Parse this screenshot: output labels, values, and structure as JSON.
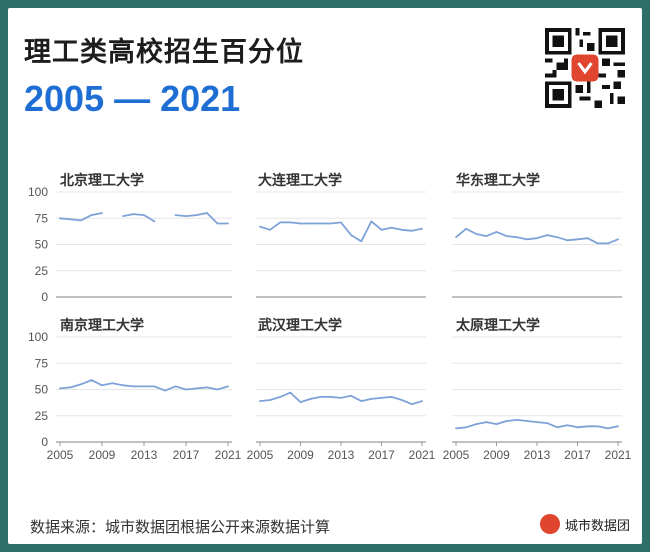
{
  "title": "理工类高校招生百分位",
  "subtitle": "2005 — 2021",
  "source": "数据来源：城市数据团根据公开来源数据计算",
  "brand": "城市数据团",
  "colors": {
    "line": "#7ea2d8",
    "accent": "#1f6ed4",
    "background": "#2e6f68",
    "brand": "#e0452f"
  },
  "chart_data": [
    {
      "type": "line",
      "title": "北京理工大学",
      "x": [
        2005,
        2006,
        2007,
        2008,
        2009,
        2010,
        2011,
        2012,
        2013,
        2014,
        2015,
        2016,
        2017,
        2018,
        2019,
        2020,
        2021
      ],
      "values": [
        75,
        74,
        73,
        78,
        80,
        null,
        77,
        79,
        78,
        72,
        null,
        78,
        77,
        78,
        80,
        70,
        70
      ],
      "ylim": [
        0,
        100
      ],
      "yticks": [
        0,
        25,
        50,
        75,
        100
      ],
      "xticks": [],
      "grid": true
    },
    {
      "type": "line",
      "title": "大连理工大学",
      "x": [
        2005,
        2006,
        2007,
        2008,
        2009,
        2010,
        2011,
        2012,
        2013,
        2014,
        2015,
        2016,
        2017,
        2018,
        2019,
        2020,
        2021
      ],
      "values": [
        67,
        64,
        71,
        71,
        70,
        70,
        70,
        70,
        71,
        59,
        53,
        72,
        64,
        66,
        64,
        63,
        65
      ],
      "ylim": [
        0,
        100
      ],
      "yticks": [],
      "xticks": [],
      "grid": true
    },
    {
      "type": "line",
      "title": "华东理工大学",
      "x": [
        2005,
        2006,
        2007,
        2008,
        2009,
        2010,
        2011,
        2012,
        2013,
        2014,
        2015,
        2016,
        2017,
        2018,
        2019,
        2020,
        2021
      ],
      "values": [
        57,
        65,
        60,
        58,
        62,
        58,
        57,
        55,
        56,
        59,
        57,
        54,
        55,
        56,
        51,
        51,
        55
      ],
      "ylim": [
        0,
        100
      ],
      "yticks": [],
      "xticks": [],
      "grid": true
    },
    {
      "type": "line",
      "title": "南京理工大学",
      "x": [
        2005,
        2006,
        2007,
        2008,
        2009,
        2010,
        2011,
        2012,
        2013,
        2014,
        2015,
        2016,
        2017,
        2018,
        2019,
        2020,
        2021
      ],
      "values": [
        51,
        52,
        55,
        59,
        54,
        56,
        54,
        53,
        53,
        53,
        49,
        53,
        50,
        51,
        52,
        50,
        53
      ],
      "ylim": [
        0,
        100
      ],
      "yticks": [
        0,
        25,
        50,
        75,
        100
      ],
      "xticks": [
        2005,
        2009,
        2013,
        2017,
        2021
      ],
      "grid": true
    },
    {
      "type": "line",
      "title": "武汉理工大学",
      "x": [
        2005,
        2006,
        2007,
        2008,
        2009,
        2010,
        2011,
        2012,
        2013,
        2014,
        2015,
        2016,
        2017,
        2018,
        2019,
        2020,
        2021
      ],
      "values": [
        39,
        40,
        43,
        47,
        38,
        41,
        43,
        43,
        42,
        44,
        39,
        41,
        42,
        43,
        40,
        36,
        39
      ],
      "ylim": [
        0,
        100
      ],
      "yticks": [],
      "xticks": [
        2005,
        2009,
        2013,
        2017,
        2021
      ],
      "grid": true
    },
    {
      "type": "line",
      "title": "太原理工大学",
      "x": [
        2005,
        2006,
        2007,
        2008,
        2009,
        2010,
        2011,
        2012,
        2013,
        2014,
        2015,
        2016,
        2017,
        2018,
        2019,
        2020,
        2021
      ],
      "values": [
        13,
        14,
        17,
        19,
        17,
        20,
        21,
        20,
        19,
        18,
        14,
        16,
        14,
        15,
        15,
        13,
        15
      ],
      "ylim": [
        0,
        100
      ],
      "yticks": [],
      "xticks": [
        2005,
        2009,
        2013,
        2017,
        2021
      ],
      "grid": true
    }
  ]
}
